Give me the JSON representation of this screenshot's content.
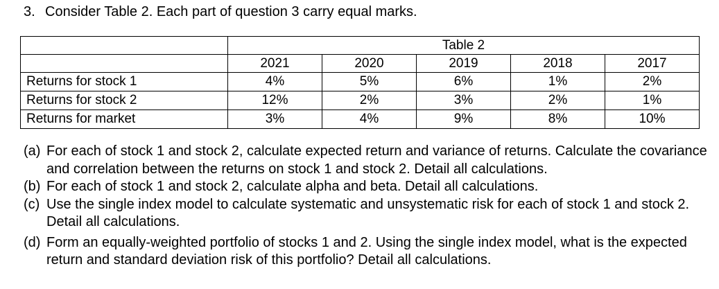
{
  "question": {
    "number": "3.",
    "text": "Consider Table 2. Each part of question 3 carry equal marks."
  },
  "table": {
    "caption": "Table 2",
    "years": [
      "2021",
      "2020",
      "2019",
      "2018",
      "2017"
    ],
    "rows": [
      {
        "label": "Returns for stock 1",
        "values": [
          "4%",
          "5%",
          "6%",
          "1%",
          "2%"
        ]
      },
      {
        "label": "Returns for stock 2",
        "values": [
          "12%",
          "2%",
          "3%",
          "2%",
          "1%"
        ]
      },
      {
        "label": "Returns for market",
        "values": [
          "3%",
          "4%",
          "9%",
          "8%",
          "10%"
        ]
      }
    ]
  },
  "parts": [
    {
      "tag": "(a)",
      "text": "For each of stock 1 and stock 2, calculate expected return and variance of returns. Calculate the covariance and correlation between the returns on stock 1 and stock 2. Detail all calculations."
    },
    {
      "tag": "(b)",
      "text": "For each of stock 1 and stock 2, calculate alpha and beta. Detail all calculations."
    },
    {
      "tag": "(c)",
      "text": "Use the single index model to calculate systematic and unsystematic risk for each of stock 1 and stock 2. Detail all calculations."
    },
    {
      "tag": "(d)",
      "text": "Form an equally-weighted portfolio of stocks 1 and 2. Using the single index model, what is the expected return and standard deviation risk of this portfolio? Detail all calculations."
    }
  ]
}
